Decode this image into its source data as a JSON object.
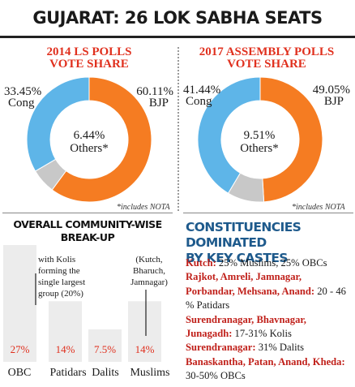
{
  "page_title": "GUJARAT: 26 LOK SABHA SEATS",
  "colors": {
    "bjp": "#f57c22",
    "cong": "#5eb5e8",
    "others": "#c8c8c8",
    "accent_red": "#e0301e",
    "heading_blue": "#1e5a8c",
    "bar_fill": "#ececec"
  },
  "chart_data": [
    {
      "type": "pie",
      "title": "2014 LS POLLS VOTE SHARE",
      "title_lines": [
        "2014 LS POLLS",
        "VOTE SHARE"
      ],
      "slices": [
        {
          "name": "BJP",
          "value": 60.11,
          "value_label": "60.11%"
        },
        {
          "name": "Others*",
          "value": 6.44,
          "value_label": "6.44%"
        },
        {
          "name": "Cong",
          "value": 33.45,
          "value_label": "33.45%"
        }
      ],
      "footnote": "*includes NOTA"
    },
    {
      "type": "pie",
      "title": "2017 ASSEMBLY POLLS VOTE SHARE",
      "title_lines": [
        "2017 ASSEMBLY POLLS",
        "VOTE SHARE"
      ],
      "slices": [
        {
          "name": "BJP",
          "value": 49.05,
          "value_label": "49.05%"
        },
        {
          "name": "Others*",
          "value": 9.51,
          "value_label": "9.51%"
        },
        {
          "name": "Cong",
          "value": 41.44,
          "value_label": "41.44%"
        }
      ],
      "footnote": "*includes NOTA"
    },
    {
      "type": "bar",
      "title": "OVERALL COMMUNITY-WISE BREAK-UP",
      "title_lines": [
        "OVERALL COMMUNITY-WISE",
        "BREAK-UP"
      ],
      "categories": [
        "OBC",
        "Patidars",
        "Dalits",
        "Muslims"
      ],
      "values": [
        27,
        14,
        7.5,
        14
      ],
      "value_labels": [
        "27%",
        "14%",
        "7.5%",
        "14%"
      ],
      "annotations": [
        {
          "category": "OBC",
          "lines": [
            "with Kolis",
            "forming the",
            "single largest",
            "group (20%)"
          ]
        },
        {
          "category": "Muslims",
          "lines": [
            "(Kutch,",
            "Bharuch,",
            "Jamnagar)"
          ]
        }
      ]
    }
  ],
  "castes": {
    "title_lines": [
      "CONSTITUENCIES DOMINATED",
      "BY KEY CASTES"
    ],
    "entries": [
      {
        "places": "Kutch:",
        "detail": " 25% Muslims, 25% OBCs"
      },
      {
        "places": "Rajkot, Amreli, Jamnagar, Porbandar, Mehsana, Anand:",
        "detail": " 20 - 46 % Patidars"
      },
      {
        "places": "Surendranagar, Bhavnagar, Junagadh:",
        "detail": " 17-31% Kolis"
      },
      {
        "places": "Surendranagar:",
        "detail": " 31% Dalits"
      },
      {
        "places": "Banaskantha, Patan, Anand, Kheda:",
        "detail": "  30-50% OBCs"
      }
    ]
  }
}
